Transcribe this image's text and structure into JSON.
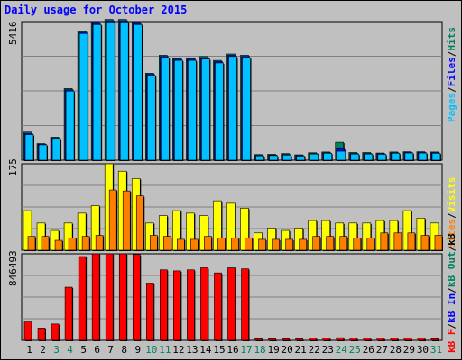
{
  "title": "Daily usage for October 2015",
  "colors": {
    "background": "#c0c0c0",
    "hits": "#00805c",
    "files": "#0000ff",
    "pages": "#00c0ff",
    "visits": "#ffff00",
    "sites": "#ff8000",
    "kb_in": "#0000ff",
    "kb_out": "#00805c",
    "kb_f": "#ff0000",
    "weekend_label": "#00805c",
    "weekday_label": "#000000",
    "title": "#0000ff"
  },
  "chart_data": [
    {
      "type": "bar",
      "panel": "hits",
      "ylabel_max": "5416",
      "legend": [
        "Pages",
        "Files",
        "Hits"
      ],
      "ylim": [
        0,
        5416
      ],
      "series": [
        {
          "name": "Hits",
          "values": [
            1100,
            650,
            900,
            2800,
            5050,
            5400,
            5500,
            5500,
            5400,
            3400,
            4100,
            4000,
            4000,
            4050,
            3900,
            4150,
            4100,
            220,
            230,
            260,
            210,
            290,
            320,
            700,
            300,
            300,
            280,
            320,
            330,
            330,
            320
          ]
        },
        {
          "name": "Files",
          "values": [
            1050,
            620,
            860,
            2750,
            5000,
            5350,
            5450,
            5450,
            5350,
            3350,
            4050,
            3950,
            3950,
            4000,
            3850,
            4100,
            4050,
            190,
            200,
            220,
            180,
            260,
            290,
            450,
            260,
            260,
            250,
            290,
            300,
            300,
            290
          ]
        },
        {
          "name": "Pages",
          "values": [
            1000,
            600,
            820,
            2700,
            4950,
            5300,
            5400,
            5400,
            5300,
            3300,
            4000,
            3900,
            3900,
            3950,
            3800,
            4050,
            4000,
            170,
            180,
            200,
            160,
            240,
            270,
            350,
            240,
            240,
            230,
            270,
            280,
            280,
            270
          ]
        }
      ]
    },
    {
      "type": "bar",
      "panel": "visits",
      "ylabel_max": "175",
      "legend": [
        "Sites",
        "Visits"
      ],
      "ylim": [
        0,
        175
      ],
      "series": [
        {
          "name": "Visits",
          "values": [
            80,
            55,
            40,
            55,
            75,
            90,
            175,
            160,
            145,
            55,
            70,
            80,
            75,
            70,
            100,
            95,
            85,
            35,
            45,
            40,
            45,
            60,
            60,
            55,
            55,
            55,
            60,
            60,
            80,
            65,
            55
          ]
        },
        {
          "name": "Sites",
          "values": [
            28,
            28,
            20,
            25,
            28,
            30,
            122,
            120,
            110,
            30,
            28,
            22,
            22,
            28,
            25,
            25,
            25,
            22,
            22,
            22,
            22,
            28,
            28,
            28,
            25,
            25,
            35,
            35,
            35,
            30,
            30
          ]
        }
      ]
    },
    {
      "type": "bar",
      "panel": "kbytes",
      "ylabel_max": "846493",
      "legend": [
        "kB F",
        "kB In",
        "kB Out",
        "kB"
      ],
      "ylim": [
        0,
        846493
      ],
      "series": [
        {
          "name": "kB F",
          "values": [
            180000,
            120000,
            160000,
            520000,
            820000,
            846493,
            846493,
            846493,
            840000,
            560000,
            690000,
            680000,
            690000,
            710000,
            660000,
            710000,
            700000,
            15000,
            15000,
            15000,
            15000,
            20000,
            20000,
            25000,
            20000,
            20000,
            20000,
            20000,
            20000,
            20000,
            15000
          ]
        }
      ]
    }
  ],
  "days": [
    "1",
    "2",
    "3",
    "4",
    "5",
    "6",
    "7",
    "8",
    "9",
    "10",
    "11",
    "12",
    "13",
    "14",
    "15",
    "16",
    "17",
    "18",
    "19",
    "20",
    "21",
    "22",
    "23",
    "24",
    "25",
    "26",
    "27",
    "28",
    "29",
    "30",
    "31"
  ],
  "weekend_days": [
    3,
    4,
    10,
    11,
    17,
    18,
    24,
    25,
    31
  ]
}
